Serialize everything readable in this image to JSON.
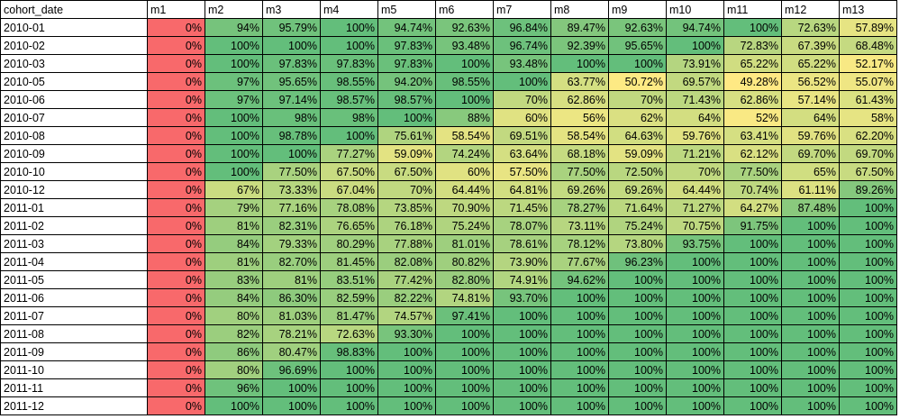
{
  "headers": [
    "cohort_date",
    "m1",
    "m2",
    "m3",
    "m4",
    "m5",
    "m6",
    "m7",
    "m8",
    "m9",
    "m10",
    "m11",
    "m12",
    "m13"
  ],
  "rows": [
    {
      "cohort": "2010-01",
      "values": [
        "0%",
        "94%",
        "95.79%",
        "100%",
        "94.74%",
        "92.63%",
        "96.84%",
        "89.47%",
        "92.63%",
        "94.74%",
        "100%",
        "72.63%",
        "57.89%"
      ]
    },
    {
      "cohort": "2010-02",
      "values": [
        "0%",
        "100%",
        "100%",
        "100%",
        "97.83%",
        "93.48%",
        "96.74%",
        "92.39%",
        "95.65%",
        "100%",
        "72.83%",
        "67.39%",
        "68.48%"
      ]
    },
    {
      "cohort": "2010-03",
      "values": [
        "0%",
        "100%",
        "97.83%",
        "97.83%",
        "97.83%",
        "100%",
        "93.48%",
        "100%",
        "100%",
        "73.91%",
        "65.22%",
        "65.22%",
        "52.17%"
      ]
    },
    {
      "cohort": "2010-05",
      "values": [
        "0%",
        "97%",
        "95.65%",
        "98.55%",
        "94.20%",
        "98.55%",
        "100%",
        "63.77%",
        "50.72%",
        "69.57%",
        "49.28%",
        "56.52%",
        "55.07%"
      ]
    },
    {
      "cohort": "2010-06",
      "values": [
        "0%",
        "97%",
        "97.14%",
        "98.57%",
        "98.57%",
        "100%",
        "70%",
        "62.86%",
        "70%",
        "71.43%",
        "62.86%",
        "57.14%",
        "61.43%"
      ]
    },
    {
      "cohort": "2010-07",
      "values": [
        "0%",
        "100%",
        "98%",
        "98%",
        "100%",
        "88%",
        "60%",
        "56%",
        "62%",
        "64%",
        "52%",
        "64%",
        "58%"
      ]
    },
    {
      "cohort": "2010-08",
      "values": [
        "0%",
        "100%",
        "98.78%",
        "100%",
        "75.61%",
        "58.54%",
        "69.51%",
        "58.54%",
        "64.63%",
        "59.76%",
        "63.41%",
        "59.76%",
        "62.20%"
      ]
    },
    {
      "cohort": "2010-09",
      "values": [
        "0%",
        "100%",
        "100%",
        "77.27%",
        "59.09%",
        "74.24%",
        "63.64%",
        "68.18%",
        "59.09%",
        "71.21%",
        "62.12%",
        "69.70%",
        "69.70%"
      ]
    },
    {
      "cohort": "2010-10",
      "values": [
        "0%",
        "100%",
        "77.50%",
        "67.50%",
        "67.50%",
        "60%",
        "57.50%",
        "77.50%",
        "72.50%",
        "70%",
        "77.50%",
        "65%",
        "67.50%"
      ]
    },
    {
      "cohort": "2010-12",
      "values": [
        "0%",
        "67%",
        "73.33%",
        "67.04%",
        "70%",
        "64.44%",
        "64.81%",
        "69.26%",
        "69.26%",
        "64.44%",
        "70.74%",
        "61.11%",
        "89.26%"
      ]
    },
    {
      "cohort": "2011-01",
      "values": [
        "0%",
        "79%",
        "77.16%",
        "78.08%",
        "73.85%",
        "70.90%",
        "71.45%",
        "78.27%",
        "71.64%",
        "71.27%",
        "64.27%",
        "87.48%",
        "100%"
      ]
    },
    {
      "cohort": "2011-02",
      "values": [
        "0%",
        "81%",
        "82.31%",
        "76.65%",
        "76.18%",
        "75.24%",
        "78.07%",
        "73.11%",
        "75.24%",
        "70.75%",
        "91.75%",
        "100%",
        "100%"
      ]
    },
    {
      "cohort": "2011-03",
      "values": [
        "0%",
        "84%",
        "79.33%",
        "80.29%",
        "77.88%",
        "81.01%",
        "78.61%",
        "78.12%",
        "73.80%",
        "93.75%",
        "100%",
        "100%",
        "100%"
      ]
    },
    {
      "cohort": "2011-04",
      "values": [
        "0%",
        "81%",
        "82.70%",
        "81.45%",
        "82.08%",
        "80.82%",
        "73.90%",
        "77.67%",
        "96.23%",
        "100%",
        "100%",
        "100%",
        "100%"
      ]
    },
    {
      "cohort": "2011-05",
      "values": [
        "0%",
        "83%",
        "81%",
        "83.51%",
        "77.42%",
        "82.80%",
        "74.91%",
        "94.62%",
        "100%",
        "100%",
        "100%",
        "100%",
        "100%"
      ]
    },
    {
      "cohort": "2011-06",
      "values": [
        "0%",
        "84%",
        "86.30%",
        "82.59%",
        "82.22%",
        "74.81%",
        "93.70%",
        "100%",
        "100%",
        "100%",
        "100%",
        "100%",
        "100%"
      ]
    },
    {
      "cohort": "2011-07",
      "values": [
        "0%",
        "80%",
        "81.03%",
        "81.47%",
        "74.57%",
        "97.41%",
        "100%",
        "100%",
        "100%",
        "100%",
        "100%",
        "100%",
        "100%"
      ]
    },
    {
      "cohort": "2011-08",
      "values": [
        "0%",
        "82%",
        "78.21%",
        "72.63%",
        "93.30%",
        "100%",
        "100%",
        "100%",
        "100%",
        "100%",
        "100%",
        "100%",
        "100%"
      ]
    },
    {
      "cohort": "2011-09",
      "values": [
        "0%",
        "86%",
        "80.47%",
        "98.83%",
        "100%",
        "100%",
        "100%",
        "100%",
        "100%",
        "100%",
        "100%",
        "100%",
        "100%"
      ]
    },
    {
      "cohort": "2011-10",
      "values": [
        "0%",
        "80%",
        "96.69%",
        "100%",
        "100%",
        "100%",
        "100%",
        "100%",
        "100%",
        "100%",
        "100%",
        "100%",
        "100%"
      ]
    },
    {
      "cohort": "2011-11",
      "values": [
        "0%",
        "96%",
        "100%",
        "100%",
        "100%",
        "100%",
        "100%",
        "100%",
        "100%",
        "100%",
        "100%",
        "100%",
        "100%"
      ]
    },
    {
      "cohort": "2011-12",
      "values": [
        "0%",
        "100%",
        "100%",
        "100%",
        "100%",
        "100%",
        "100%",
        "100%",
        "100%",
        "100%",
        "100%",
        "100%",
        "100%"
      ]
    }
  ],
  "color_scale": {
    "low": "#f8696b",
    "mid": "#ffeb84",
    "high": "#63be7b"
  }
}
